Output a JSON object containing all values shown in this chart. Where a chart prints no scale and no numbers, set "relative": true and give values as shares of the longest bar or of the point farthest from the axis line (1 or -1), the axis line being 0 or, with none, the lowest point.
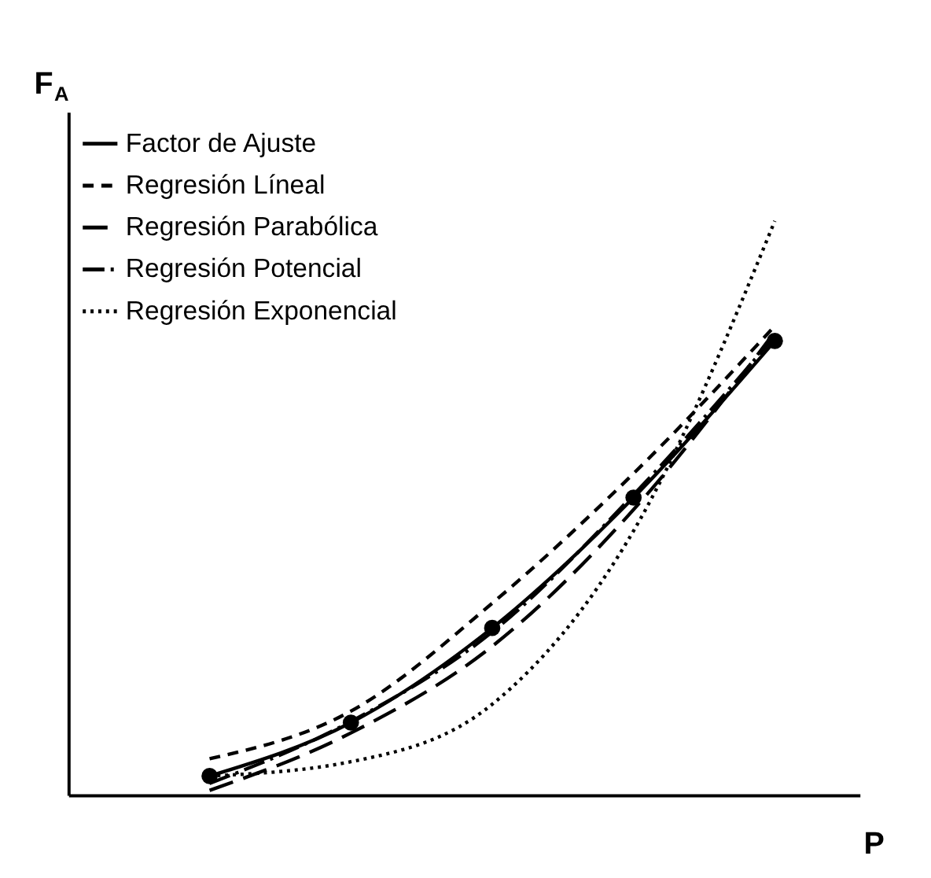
{
  "chart_data": {
    "type": "line",
    "relative": true,
    "xlabel": "P",
    "ylabel": "F$_{A}$",
    "categories": [
      null,
      null,
      null,
      null,
      null
    ],
    "legend": "top left",
    "grid": false,
    "tick_labels": false,
    "series": [
      {
        "name": "Factor de Ajuste",
        "color": "#000000",
        "values": [
          0.033,
          0.126,
          0.291,
          0.518,
          0.791
        ],
        "marker": "circle",
        "line_style": "solid"
      },
      {
        "name": "Regresión Líneal",
        "color": "#000000",
        "values": [
          0.063,
          0.146,
          0.334,
          0.56,
          0.817
        ],
        "marker": "none",
        "line_style": "dashed"
      },
      {
        "name": "Regresión Parabólica",
        "color": "#000000",
        "values": [
          0.008,
          0.108,
          0.259,
          0.497,
          0.807
        ],
        "marker": "none",
        "line_style": "dashed"
      },
      {
        "name": "Regresión Potencial",
        "color": "#000000",
        "values": [
          0.02,
          0.128,
          0.284,
          0.523,
          0.799
        ],
        "marker": "none",
        "line_style": "dashed"
      },
      {
        "name": "Regresión Exponencial",
        "color": "#000000",
        "values": [
          0.033,
          0.058,
          0.158,
          0.46,
          1
        ],
        "marker": "none",
        "line_style": "dotted"
      }
    ]
  }
}
